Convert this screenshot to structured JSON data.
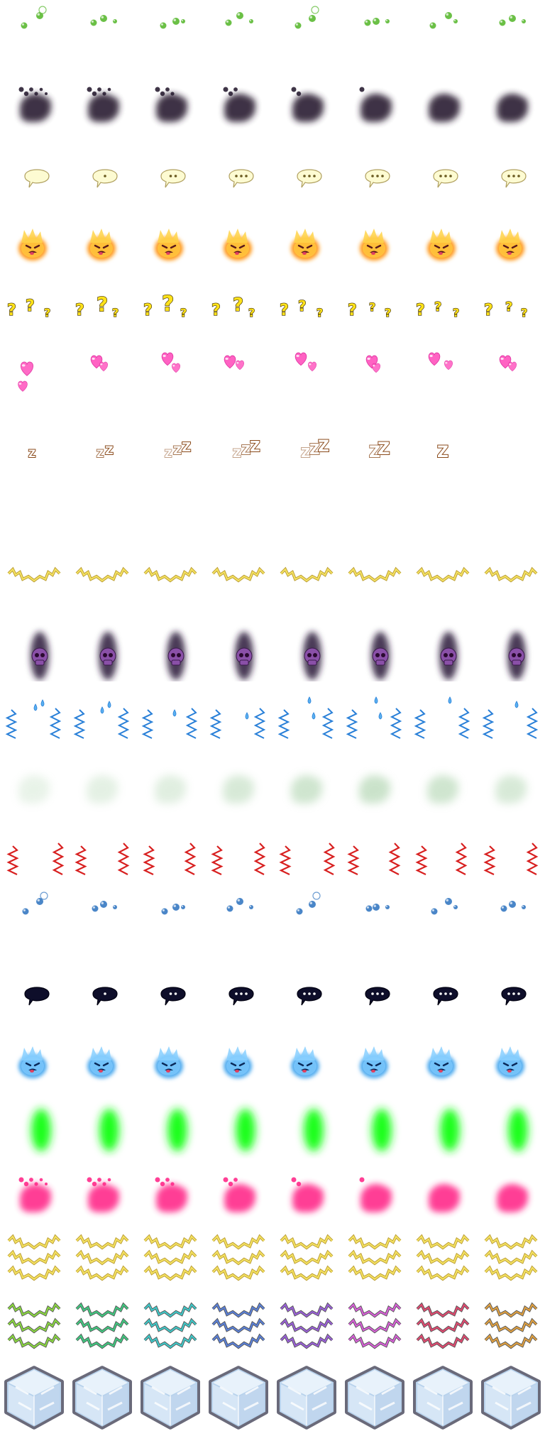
{
  "sheet": {
    "title": "",
    "frames_per_row": 8,
    "rows": [
      {
        "id": "green-bubbles",
        "frames": 8
      },
      {
        "id": "dark-smoke-cloud",
        "frames": 8
      },
      {
        "id": "cream-speech-bubble",
        "frames": 8
      },
      {
        "id": "angry-fire-face",
        "frames": 8
      },
      {
        "id": "yellow-question-marks",
        "frames": 8
      },
      {
        "id": "pink-hearts",
        "frames": 8
      },
      {
        "id": "sleep-zzz",
        "frames": 7
      },
      {
        "id": "empty-row",
        "frames": 0
      },
      {
        "id": "gold-lightning-crown",
        "frames": 8
      },
      {
        "id": "purple-skull-ghost",
        "frames": 8
      },
      {
        "id": "sweat-drops-nervous",
        "frames": 8
      },
      {
        "id": "pale-green-gas-cloud",
        "frames": 8
      },
      {
        "id": "red-anger-zigzags",
        "frames": 8
      },
      {
        "id": "blue-bubbles",
        "frames": 8
      },
      {
        "id": "black-speech-bubble",
        "frames": 8
      },
      {
        "id": "blue-fire-face",
        "frames": 8
      },
      {
        "id": "green-glow-aura",
        "frames": 8
      },
      {
        "id": "pink-smoke-cloud",
        "frames": 8
      },
      {
        "id": "gold-lightning-wreath",
        "frames": 8
      },
      {
        "id": "rainbow-lightning-wreath",
        "frames": 8
      },
      {
        "id": "ice-cube-block",
        "frames": 8
      }
    ],
    "colors": {
      "green_bubble": "#6bc046",
      "blue_bubble": "#4a86c8",
      "dark_smoke": "#2a1f33",
      "pink_smoke": "#ff2a8a",
      "cream_bubble": "#fdfbd2",
      "bubble_outline": "#b0a060",
      "black_bubble": "#0e0e2a",
      "fire_orange": "#ff9a1a",
      "fire_face": "#5a1a1a",
      "blue_fire": "#4aa8ee",
      "question_yellow": "#ffe21a",
      "question_outline": "#3a2a00",
      "heart_pink": "#ff5ac0",
      "zzz_fill": "#ffffff",
      "zzz_outline": "#8a4a1a",
      "gold_bolt": "#f3e060",
      "gold_outline": "#b89a30",
      "skull_purple": "#8a50a8",
      "shadow_purple": "#2a1a3a",
      "water_blue": "#2a80d8",
      "gas_green": "#a8d0a8",
      "anger_red": "#d82020",
      "aura_green": "#1aff1a",
      "ice_light": "#e8f2fb",
      "ice_mid": "#b8d2ec",
      "ice_border": "#6a6a7a"
    },
    "rainbow_palette": [
      "#8ad840",
      "#40c880",
      "#40c8c8",
      "#5a80d8",
      "#9a60d8",
      "#d860d8",
      "#e04a70",
      "#e0a040"
    ]
  }
}
